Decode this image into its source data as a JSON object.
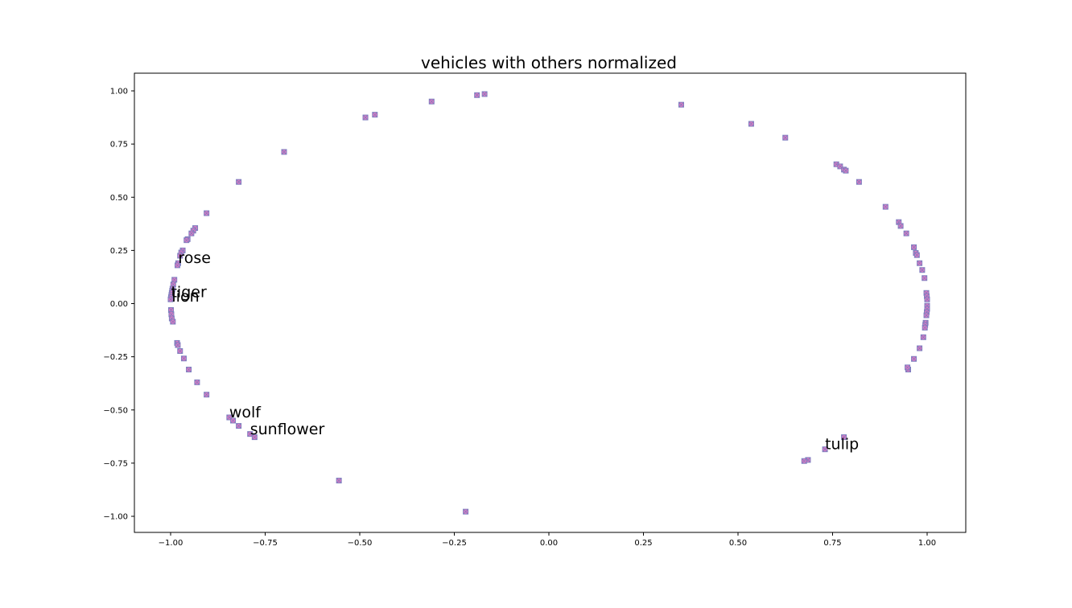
{
  "chart_data": {
    "type": "scatter",
    "title": "vehicles with others normalized",
    "xlabel": "",
    "ylabel": "",
    "xlim": [
      -1.1,
      1.1
    ],
    "ylim": [
      -1.08,
      1.08
    ],
    "xticks": [
      -1.0,
      -0.75,
      -0.5,
      -0.25,
      0.0,
      0.25,
      0.5,
      0.75,
      1.0
    ],
    "yticks": [
      -1.0,
      -0.75,
      -0.5,
      -0.25,
      0.0,
      0.25,
      0.5,
      0.75,
      1.0
    ],
    "xtick_labels": [
      "−1.00",
      "−0.75",
      "−0.50",
      "−0.25",
      "0.00",
      "0.25",
      "0.50",
      "0.75",
      "1.00"
    ],
    "ytick_labels": [
      "−1.00",
      "−0.75",
      "−0.50",
      "−0.25",
      "0.00",
      "0.25",
      "0.50",
      "0.75",
      "1.00"
    ],
    "grid": false,
    "marker_fill": "#e377c2",
    "marker_edge": "#7f7fbf",
    "points": [
      [
        -0.17,
        0.985
      ],
      [
        -0.19,
        0.98
      ],
      [
        -0.31,
        0.95
      ],
      [
        -0.46,
        0.888
      ],
      [
        -0.485,
        0.875
      ],
      [
        -0.7,
        0.713
      ],
      [
        -0.82,
        0.572
      ],
      [
        -0.905,
        0.425
      ],
      [
        -0.935,
        0.355
      ],
      [
        -0.94,
        0.343
      ],
      [
        -0.945,
        0.33
      ],
      [
        -0.955,
        0.303
      ],
      [
        -0.958,
        0.298
      ],
      [
        -0.968,
        0.25
      ],
      [
        -0.972,
        0.24
      ],
      [
        -0.975,
        0.225
      ],
      [
        -0.98,
        0.19
      ],
      [
        -0.982,
        0.18
      ],
      [
        -0.99,
        0.112
      ],
      [
        -0.993,
        0.09
      ],
      [
        -0.995,
        0.07
      ],
      [
        -0.996,
        0.06
      ],
      [
        -0.997,
        0.05
      ],
      [
        -0.998,
        0.04
      ],
      [
        -0.999,
        0.03
      ],
      [
        -1.0,
        0.02
      ],
      [
        -0.999,
        -0.03
      ],
      [
        -0.998,
        -0.05
      ],
      [
        -0.997,
        -0.07
      ],
      [
        -0.994,
        -0.085
      ],
      [
        -0.983,
        -0.185
      ],
      [
        -0.981,
        -0.195
      ],
      [
        -0.975,
        -0.223
      ],
      [
        -0.965,
        -0.258
      ],
      [
        -0.952,
        -0.31
      ],
      [
        -0.93,
        -0.37
      ],
      [
        -0.905,
        -0.428
      ],
      [
        -0.845,
        -0.535
      ],
      [
        -0.835,
        -0.55
      ],
      [
        -0.82,
        -0.575
      ],
      [
        -0.79,
        -0.613
      ],
      [
        -0.778,
        -0.628
      ],
      [
        -0.555,
        -0.832
      ],
      [
        -0.22,
        -0.978
      ],
      [
        0.35,
        0.935
      ],
      [
        0.535,
        0.845
      ],
      [
        0.625,
        0.78
      ],
      [
        0.76,
        0.655
      ],
      [
        0.77,
        0.645
      ],
      [
        0.78,
        0.63
      ],
      [
        0.785,
        0.625
      ],
      [
        0.82,
        0.572
      ],
      [
        0.89,
        0.455
      ],
      [
        0.925,
        0.383
      ],
      [
        0.93,
        0.365
      ],
      [
        0.945,
        0.33
      ],
      [
        0.965,
        0.265
      ],
      [
        0.97,
        0.238
      ],
      [
        0.973,
        0.228
      ],
      [
        0.98,
        0.19
      ],
      [
        0.987,
        0.158
      ],
      [
        0.993,
        0.12
      ],
      [
        0.998,
        0.05
      ],
      [
        0.999,
        0.035
      ],
      [
        1.0,
        0.02
      ],
      [
        1.0,
        -0.01
      ],
      [
        1.0,
        -0.025
      ],
      [
        0.999,
        -0.04
      ],
      [
        0.998,
        -0.055
      ],
      [
        0.996,
        -0.09
      ],
      [
        0.995,
        -0.1
      ],
      [
        0.994,
        -0.113
      ],
      [
        0.99,
        -0.158
      ],
      [
        0.98,
        -0.21
      ],
      [
        0.965,
        -0.26
      ],
      [
        0.95,
        -0.31
      ],
      [
        0.948,
        -0.3
      ],
      [
        0.78,
        -0.628
      ],
      [
        0.73,
        -0.685
      ],
      [
        0.685,
        -0.735
      ],
      [
        0.675,
        -0.74
      ]
    ],
    "annotations": [
      {
        "text": "rose",
        "x": -0.98,
        "y": 0.19
      },
      {
        "text": "tiger",
        "x": -0.999,
        "y": 0.03
      },
      {
        "text": "lion",
        "x": -0.997,
        "y": 0.01
      },
      {
        "text": "wolf",
        "x": -0.845,
        "y": -0.535
      },
      {
        "text": "sunflower",
        "x": -0.79,
        "y": -0.615
      },
      {
        "text": "tulip",
        "x": 0.73,
        "y": -0.685
      }
    ]
  }
}
